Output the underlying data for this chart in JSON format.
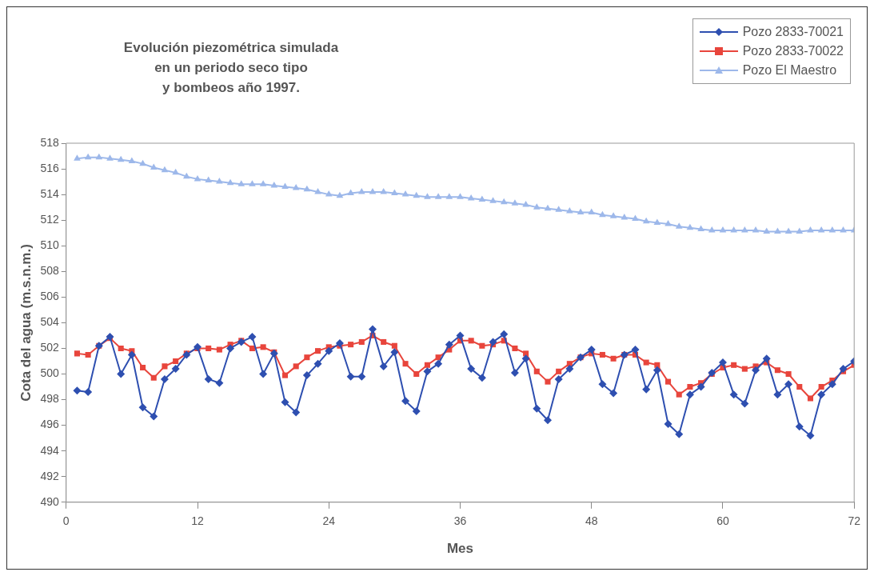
{
  "chart_data": {
    "type": "line",
    "title": "Evolución piezométrica simulada\nen un periodo seco tipo\ny bombeos año 1997.",
    "xlabel": "Mes",
    "ylabel": "Cota del agua (m.s.n.m.)",
    "x": [
      1,
      2,
      3,
      4,
      5,
      6,
      7,
      8,
      9,
      10,
      11,
      12,
      13,
      14,
      15,
      16,
      17,
      18,
      19,
      20,
      21,
      22,
      23,
      24,
      25,
      26,
      27,
      28,
      29,
      30,
      31,
      32,
      33,
      34,
      35,
      36,
      37,
      38,
      39,
      40,
      41,
      42,
      43,
      44,
      45,
      46,
      47,
      48,
      49,
      50,
      51,
      52,
      53,
      54,
      55,
      56,
      57,
      58,
      59,
      60,
      61,
      62,
      63,
      64,
      65,
      66,
      67,
      68,
      69,
      70,
      71,
      72
    ],
    "xlim": [
      0,
      72
    ],
    "xticks": [
      0,
      12,
      24,
      36,
      48,
      60,
      72
    ],
    "ylim": [
      490,
      518
    ],
    "yticks": [
      490,
      492,
      494,
      496,
      498,
      500,
      502,
      504,
      506,
      508,
      510,
      512,
      514,
      516,
      518
    ],
    "grid": false,
    "legend": "top right",
    "line_style": "solid",
    "series": [
      {
        "name": "Pozo 2833-70021",
        "color": "#2e4fb0",
        "marker": "diamond",
        "values": [
          498.7,
          498.6,
          502.2,
          502.9,
          500.0,
          501.5,
          497.4,
          496.7,
          499.6,
          500.4,
          501.5,
          502.1,
          499.6,
          499.3,
          502.0,
          502.5,
          502.9,
          500.0,
          501.6,
          497.8,
          497.0,
          499.9,
          500.8,
          501.8,
          502.4,
          499.8,
          499.8,
          503.5,
          500.6,
          501.7,
          497.9,
          497.1,
          500.2,
          500.8,
          502.3,
          503.0,
          500.4,
          499.7,
          502.5,
          503.1,
          500.1,
          501.2,
          497.3,
          496.4,
          499.6,
          500.4,
          501.3,
          501.9,
          499.2,
          498.5,
          501.5,
          501.9,
          498.8,
          500.3,
          496.1,
          495.3,
          498.4,
          499.0,
          500.1,
          500.9,
          498.4,
          497.7,
          500.3,
          501.2,
          498.4,
          499.2,
          495.9,
          495.2,
          498.4,
          499.2,
          500.4,
          501.0
        ]
      },
      {
        "name": "Pozo 2833-70022",
        "color": "#e8453c",
        "marker": "square",
        "values": [
          501.6,
          501.5,
          502.2,
          502.8,
          502.0,
          501.8,
          500.5,
          499.7,
          500.6,
          501.0,
          501.6,
          502.0,
          502.0,
          501.9,
          502.3,
          502.6,
          502.0,
          502.1,
          501.7,
          499.9,
          500.6,
          501.3,
          501.8,
          502.1,
          502.2,
          502.3,
          502.5,
          503.0,
          502.5,
          502.2,
          500.8,
          500.0,
          500.7,
          501.3,
          501.9,
          502.6,
          502.6,
          502.2,
          502.3,
          502.6,
          502.0,
          501.6,
          500.2,
          499.4,
          500.2,
          500.8,
          501.3,
          501.6,
          501.5,
          501.2,
          501.5,
          501.5,
          500.9,
          500.7,
          499.4,
          498.4,
          499.0,
          499.3,
          500.0,
          500.5,
          500.7,
          500.4,
          500.6,
          500.9,
          500.3,
          500.0,
          499.0,
          498.1,
          499.0,
          499.5,
          500.2,
          500.7
        ]
      },
      {
        "name": "Pozo El Maestro",
        "color": "#9db8ea",
        "marker": "triangle",
        "values": [
          516.8,
          516.9,
          516.9,
          516.8,
          516.7,
          516.6,
          516.4,
          516.1,
          515.9,
          515.7,
          515.4,
          515.2,
          515.1,
          515.0,
          514.9,
          514.8,
          514.8,
          514.8,
          514.7,
          514.6,
          514.5,
          514.4,
          514.2,
          514.0,
          513.9,
          514.1,
          514.2,
          514.2,
          514.2,
          514.1,
          514.0,
          513.9,
          513.8,
          513.8,
          513.8,
          513.8,
          513.7,
          513.6,
          513.5,
          513.4,
          513.3,
          513.2,
          513.0,
          512.9,
          512.8,
          512.7,
          512.6,
          512.6,
          512.4,
          512.3,
          512.2,
          512.1,
          511.9,
          511.8,
          511.7,
          511.5,
          511.4,
          511.3,
          511.2,
          511.2,
          511.2,
          511.2,
          511.2,
          511.1,
          511.1,
          511.1,
          511.1,
          511.2,
          511.2,
          511.2,
          511.2,
          511.2
        ]
      }
    ]
  }
}
